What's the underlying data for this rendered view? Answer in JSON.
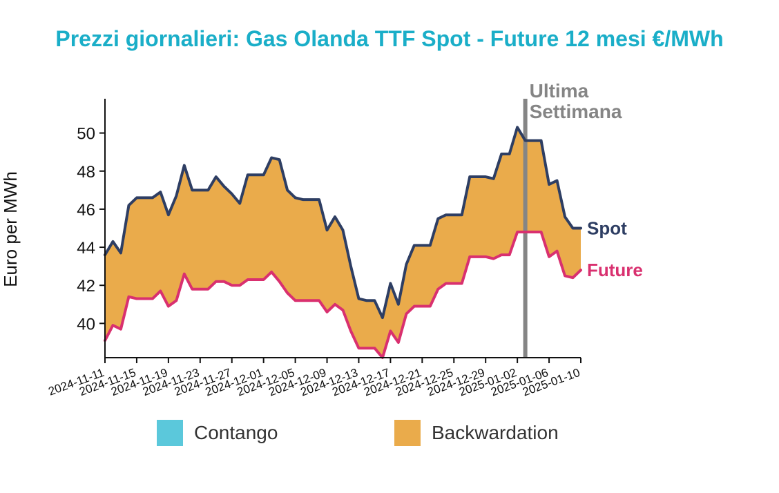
{
  "chart_data": {
    "type": "area",
    "title": "Prezzi giornalieri: Gas Olanda TTF Spot - Future 12 mesi €/MWh",
    "ylabel": "Euro per MWh",
    "xlabel": "",
    "ylim": [
      38.2,
      51.8
    ],
    "yticks": [
      40,
      42,
      44,
      46,
      48,
      50
    ],
    "x_start": "2024-11-11",
    "x_end": "2025-01-10",
    "xticks": [
      "2024-11-11",
      "2024-11-15",
      "2024-11-19",
      "2024-11-23",
      "2024-11-27",
      "2024-12-01",
      "2024-12-05",
      "2024-12-09",
      "2024-12-13",
      "2024-12-17",
      "2024-12-21",
      "2024-12-25",
      "2024-12-29",
      "2025-01-02",
      "2025-01-06",
      "2025-01-10"
    ],
    "series": [
      {
        "name": "Spot",
        "color": "#2e3e63",
        "points": [
          [
            "2024-11-11",
            43.6
          ],
          [
            "2024-11-12",
            44.3
          ],
          [
            "2024-11-13",
            43.7
          ],
          [
            "2024-11-14",
            46.2
          ],
          [
            "2024-11-15",
            46.6
          ],
          [
            "2024-11-16",
            46.6
          ],
          [
            "2024-11-17",
            46.6
          ],
          [
            "2024-11-18",
            46.9
          ],
          [
            "2024-11-19",
            45.7
          ],
          [
            "2024-11-20",
            46.7
          ],
          [
            "2024-11-21",
            48.3
          ],
          [
            "2024-11-22",
            47.0
          ],
          [
            "2024-11-23",
            47.0
          ],
          [
            "2024-11-24",
            47.0
          ],
          [
            "2024-11-25",
            47.7
          ],
          [
            "2024-11-26",
            47.2
          ],
          [
            "2024-11-27",
            46.8
          ],
          [
            "2024-11-28",
            46.3
          ],
          [
            "2024-11-29",
            47.8
          ],
          [
            "2024-11-30",
            47.8
          ],
          [
            "2024-12-01",
            47.8
          ],
          [
            "2024-12-02",
            48.7
          ],
          [
            "2024-12-03",
            48.6
          ],
          [
            "2024-12-04",
            47.0
          ],
          [
            "2024-12-05",
            46.6
          ],
          [
            "2024-12-06",
            46.5
          ],
          [
            "2024-12-07",
            46.5
          ],
          [
            "2024-12-08",
            46.5
          ],
          [
            "2024-12-09",
            44.9
          ],
          [
            "2024-12-10",
            45.6
          ],
          [
            "2024-12-11",
            44.9
          ],
          [
            "2024-12-12",
            43.0
          ],
          [
            "2024-12-13",
            41.3
          ],
          [
            "2024-12-14",
            41.2
          ],
          [
            "2024-12-15",
            41.2
          ],
          [
            "2024-12-16",
            40.3
          ],
          [
            "2024-12-17",
            42.1
          ],
          [
            "2024-12-18",
            41.0
          ],
          [
            "2024-12-19",
            43.1
          ],
          [
            "2024-12-20",
            44.1
          ],
          [
            "2024-12-21",
            44.1
          ],
          [
            "2024-12-22",
            44.1
          ],
          [
            "2024-12-23",
            45.5
          ],
          [
            "2024-12-24",
            45.7
          ],
          [
            "2024-12-25",
            45.7
          ],
          [
            "2024-12-26",
            45.7
          ],
          [
            "2024-12-27",
            47.7
          ],
          [
            "2024-12-28",
            47.7
          ],
          [
            "2024-12-29",
            47.7
          ],
          [
            "2024-12-30",
            47.6
          ],
          [
            "2024-12-31",
            48.9
          ],
          [
            "2025-01-01",
            48.9
          ],
          [
            "2025-01-02",
            50.3
          ],
          [
            "2025-01-03",
            49.6
          ],
          [
            "2025-01-04",
            49.6
          ],
          [
            "2025-01-05",
            49.6
          ],
          [
            "2025-01-06",
            47.3
          ],
          [
            "2025-01-07",
            47.5
          ],
          [
            "2025-01-08",
            45.6
          ],
          [
            "2025-01-09",
            45.0
          ],
          [
            "2025-01-10",
            45.0
          ]
        ]
      },
      {
        "name": "Future",
        "color": "#d9306f",
        "points": [
          [
            "2024-11-11",
            39.1
          ],
          [
            "2024-11-12",
            39.9
          ],
          [
            "2024-11-13",
            39.7
          ],
          [
            "2024-11-14",
            41.4
          ],
          [
            "2024-11-15",
            41.3
          ],
          [
            "2024-11-16",
            41.3
          ],
          [
            "2024-11-17",
            41.3
          ],
          [
            "2024-11-18",
            41.7
          ],
          [
            "2024-11-19",
            40.9
          ],
          [
            "2024-11-20",
            41.2
          ],
          [
            "2024-11-21",
            42.6
          ],
          [
            "2024-11-22",
            41.8
          ],
          [
            "2024-11-23",
            41.8
          ],
          [
            "2024-11-24",
            41.8
          ],
          [
            "2024-11-25",
            42.2
          ],
          [
            "2024-11-26",
            42.2
          ],
          [
            "2024-11-27",
            42.0
          ],
          [
            "2024-11-28",
            42.0
          ],
          [
            "2024-11-29",
            42.3
          ],
          [
            "2024-11-30",
            42.3
          ],
          [
            "2024-12-01",
            42.3
          ],
          [
            "2024-12-02",
            42.7
          ],
          [
            "2024-12-03",
            42.2
          ],
          [
            "2024-12-04",
            41.6
          ],
          [
            "2024-12-05",
            41.2
          ],
          [
            "2024-12-06",
            41.2
          ],
          [
            "2024-12-07",
            41.2
          ],
          [
            "2024-12-08",
            41.2
          ],
          [
            "2024-12-09",
            40.6
          ],
          [
            "2024-12-10",
            41.0
          ],
          [
            "2024-12-11",
            40.7
          ],
          [
            "2024-12-12",
            39.6
          ],
          [
            "2024-12-13",
            38.7
          ],
          [
            "2024-12-14",
            38.7
          ],
          [
            "2024-12-15",
            38.7
          ],
          [
            "2024-12-16",
            38.2
          ],
          [
            "2024-12-17",
            39.6
          ],
          [
            "2024-12-18",
            39.0
          ],
          [
            "2024-12-19",
            40.5
          ],
          [
            "2024-12-20",
            40.9
          ],
          [
            "2024-12-21",
            40.9
          ],
          [
            "2024-12-22",
            40.9
          ],
          [
            "2024-12-23",
            41.8
          ],
          [
            "2024-12-24",
            42.1
          ],
          [
            "2024-12-25",
            42.1
          ],
          [
            "2024-12-26",
            42.1
          ],
          [
            "2024-12-27",
            43.5
          ],
          [
            "2024-12-28",
            43.5
          ],
          [
            "2024-12-29",
            43.5
          ],
          [
            "2024-12-30",
            43.4
          ],
          [
            "2024-12-31",
            43.6
          ],
          [
            "2025-01-01",
            43.6
          ],
          [
            "2025-01-02",
            44.8
          ],
          [
            "2025-01-03",
            44.8
          ],
          [
            "2025-01-04",
            44.8
          ],
          [
            "2025-01-05",
            44.8
          ],
          [
            "2025-01-06",
            43.5
          ],
          [
            "2025-01-07",
            43.8
          ],
          [
            "2025-01-08",
            42.5
          ],
          [
            "2025-01-09",
            42.4
          ],
          [
            "2025-01-10",
            42.8
          ]
        ]
      }
    ],
    "fill": {
      "contango_color": "#5bc8db",
      "backwardation_color": "#eaab4b"
    },
    "annotation": {
      "date": "2025-01-03",
      "label_lines": [
        "Ultima",
        "Settimana"
      ],
      "color": "#858585"
    },
    "legend": {
      "placement": "bottom",
      "entries": [
        {
          "label": "Contango",
          "color": "#5bc8db"
        },
        {
          "label": "Backwardation",
          "color": "#eaab4b"
        }
      ]
    },
    "grid": false
  }
}
